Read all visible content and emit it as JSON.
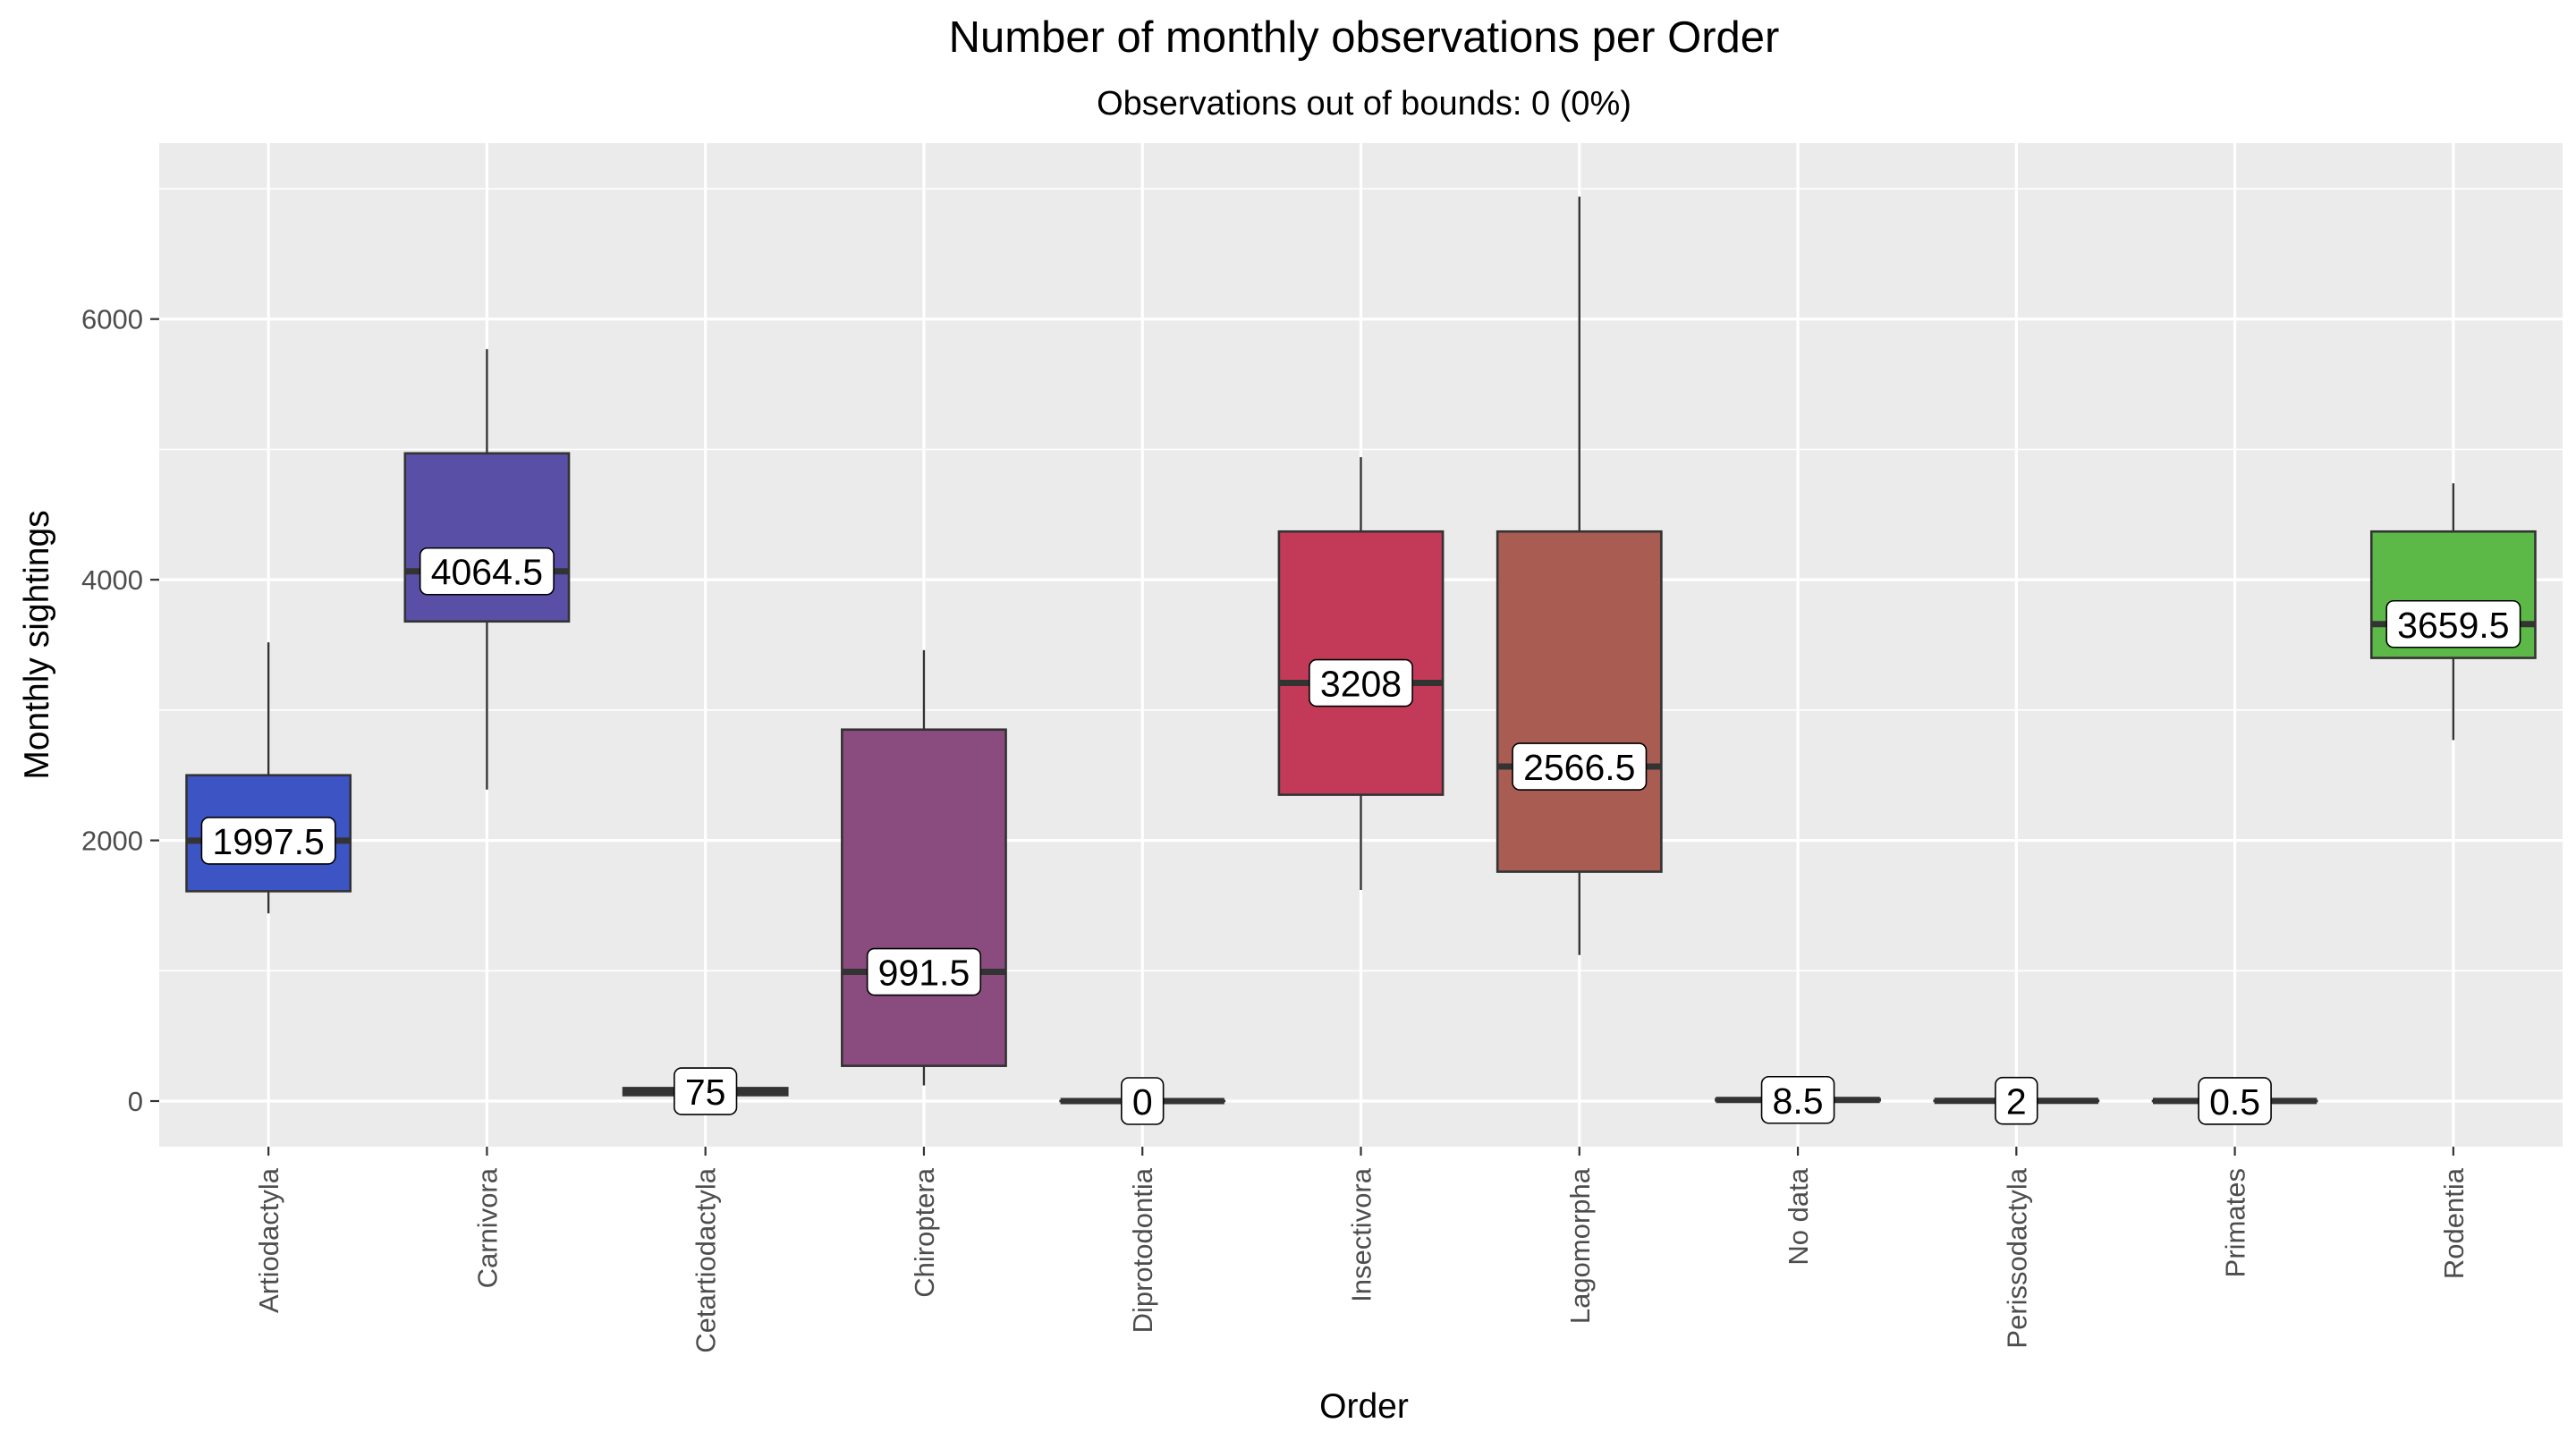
{
  "chart_data": {
    "type": "boxplot",
    "title": "Number of monthly observations per Order",
    "subtitle": "Observations out of bounds: 0 (0%)",
    "xlabel": "Order",
    "ylabel": "Monthly sightings",
    "ylim": [
      -350,
      7350
    ],
    "yticks": [
      0,
      2000,
      4000,
      6000
    ],
    "ytick_labels": [
      "0",
      "2000",
      "4000",
      "6000"
    ],
    "grid": true,
    "legend": "none",
    "colors": {
      "panel_background": "#ebebeb",
      "grid": "#ffffff",
      "box_outline": "#333333",
      "label_fill": "#ffffff"
    },
    "categories": [
      "Artiodactyla",
      "Carnivora",
      "Cetartiodactyla",
      "Chiroptera",
      "Diprotodontia",
      "Insectivora",
      "Lagomorpha",
      "No data",
      "Perissodactyla",
      "Primates",
      "Rodentia"
    ],
    "boxes": [
      {
        "category": "Artiodactyla",
        "min": 1440,
        "q1": 1610,
        "median": 1997.5,
        "q3": 2500,
        "max": 3520,
        "label": "1997.5",
        "color": "#3d54c4"
      },
      {
        "category": "Carnivora",
        "min": 2390,
        "q1": 3680,
        "median": 4064.5,
        "q3": 4970,
        "max": 5770,
        "label": "4064.5",
        "color": "#5a4fa6"
      },
      {
        "category": "Cetartiodactyla",
        "min": 40,
        "q1": 45,
        "median": 75,
        "q3": 100,
        "max": 110,
        "label": "75",
        "color": "#4a4a9a"
      },
      {
        "category": "Chiroptera",
        "min": 120,
        "q1": 270,
        "median": 991.5,
        "q3": 2850,
        "max": 3460,
        "label": "991.5",
        "color": "#8a4c7e"
      },
      {
        "category": "Diprotodontia",
        "min": 0,
        "q1": 0,
        "median": 0,
        "q3": 0,
        "max": 0,
        "label": "0",
        "color": "#7a4a80"
      },
      {
        "category": "Insectivora",
        "min": 1620,
        "q1": 2350,
        "median": 3208,
        "q3": 4370,
        "max": 4940,
        "label": "3208",
        "color": "#c23a58"
      },
      {
        "category": "Lagomorpha",
        "min": 1120,
        "q1": 1760,
        "median": 2566.5,
        "q3": 4370,
        "max": 6940,
        "label": "2566.5",
        "color": "#a85c52"
      },
      {
        "category": "No data",
        "min": 0,
        "q1": 5,
        "median": 8.5,
        "q3": 15,
        "max": 20,
        "label": "8.5",
        "color": "#9a5a50"
      },
      {
        "category": "Perissodactyla",
        "min": 0,
        "q1": 0,
        "median": 2,
        "q3": 3,
        "max": 4,
        "label": "2",
        "color": "#8a6a40"
      },
      {
        "category": "Primates",
        "min": 0,
        "q1": 0,
        "median": 0.5,
        "q3": 1,
        "max": 1,
        "label": "0.5",
        "color": "#7a8a30"
      },
      {
        "category": "Rodentia",
        "min": 2770,
        "q1": 3400,
        "median": 3659.5,
        "q3": 4370,
        "max": 4740,
        "label": "3659.5",
        "color": "#5cb947"
      }
    ]
  }
}
